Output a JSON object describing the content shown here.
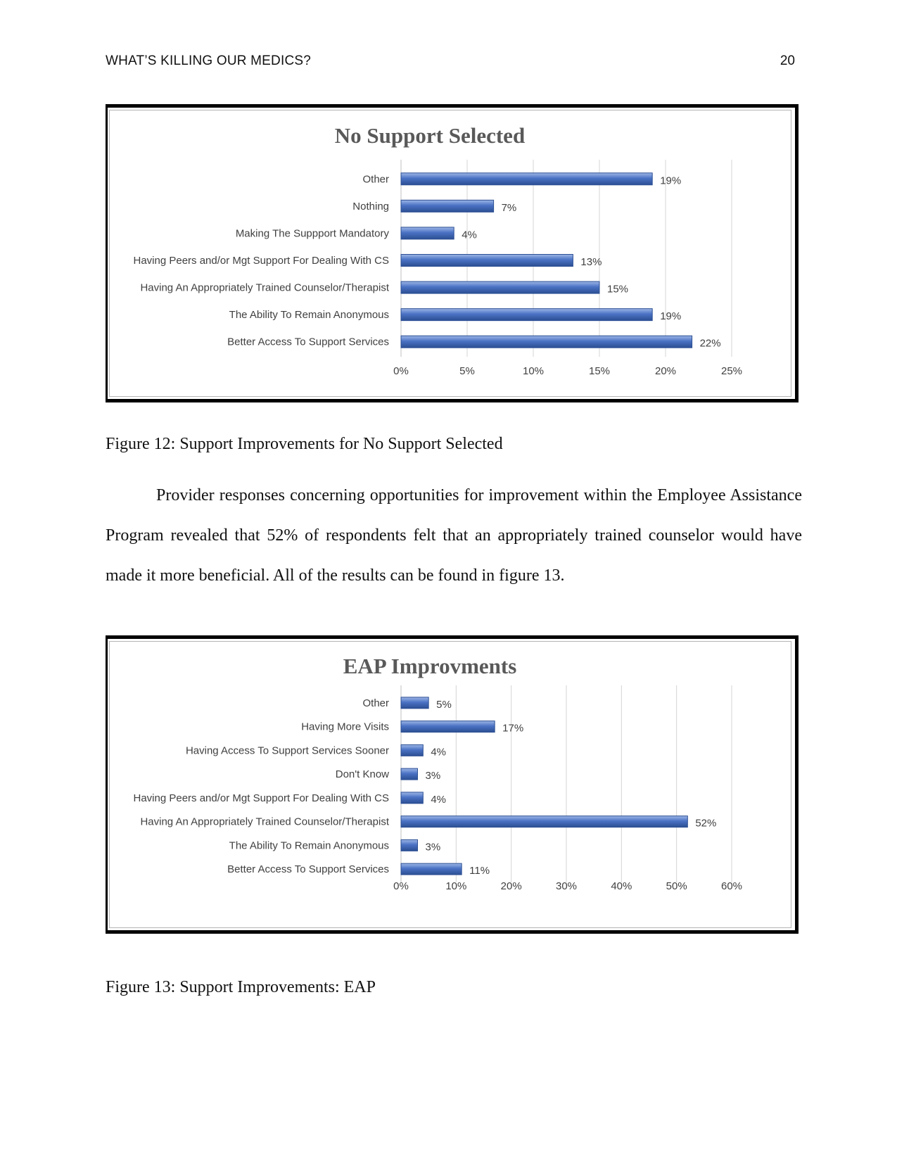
{
  "header": {
    "running_head": "WHAT’S KILLING OUR MEDICS?",
    "page_number": "20"
  },
  "figure12": {
    "caption": "Figure 12: Support Improvements for No Support Selected"
  },
  "paragraph": "Provider responses concerning opportunities for improvement within the Employee Assistance Program revealed that 52% of respondents felt that an appropriately trained counselor would have made it more beneficial. All of the results can be found in figure 13.",
  "figure13": {
    "caption": "Figure 13: Support Improvements: EAP"
  },
  "colors": {
    "bar": "#4a72c4",
    "bar_dark": "#2c4f93",
    "grid": "#d4d4d4",
    "title": "#595959",
    "label": "#404040"
  },
  "chart_data": [
    {
      "type": "bar",
      "orientation": "horizontal",
      "title": "No Support Selected",
      "categories": [
        "Other",
        "Nothing",
        "Making The Suppport Mandatory",
        "Having Peers and/or Mgt Support For Dealing With CS",
        "Having An Appropriately Trained Counselor/Therapist",
        "The Ability To Remain Anonymous",
        "Better Access To Support Services"
      ],
      "values": [
        19,
        7,
        4,
        13,
        15,
        19,
        22
      ],
      "data_labels": [
        "19%",
        "7%",
        "4%",
        "13%",
        "15%",
        "19%",
        "22%"
      ],
      "xlim": [
        0,
        25
      ],
      "xticks": [
        "0%",
        "5%",
        "10%",
        "15%",
        "20%",
        "25%"
      ],
      "xlabel": "",
      "ylabel": "",
      "grid": true
    },
    {
      "type": "bar",
      "orientation": "horizontal",
      "title": "EAP Improvments",
      "categories": [
        "Other",
        "Having More Visits",
        "Having Access To Support Services Sooner",
        "Don't Know",
        "Having Peers and/or Mgt Support For Dealing With CS",
        "Having An Appropriately Trained Counselor/Therapist",
        "The Ability To Remain Anonymous",
        "Better Access To Support Services"
      ],
      "values": [
        5,
        17,
        4,
        3,
        4,
        52,
        3,
        11
      ],
      "data_labels": [
        "5%",
        "17%",
        "4%",
        "3%",
        "4%",
        "52%",
        "3%",
        "11%"
      ],
      "xlim": [
        0,
        60
      ],
      "xticks": [
        "0%",
        "10%",
        "20%",
        "30%",
        "40%",
        "50%",
        "60%"
      ],
      "xlabel": "",
      "ylabel": "",
      "grid": true
    }
  ]
}
